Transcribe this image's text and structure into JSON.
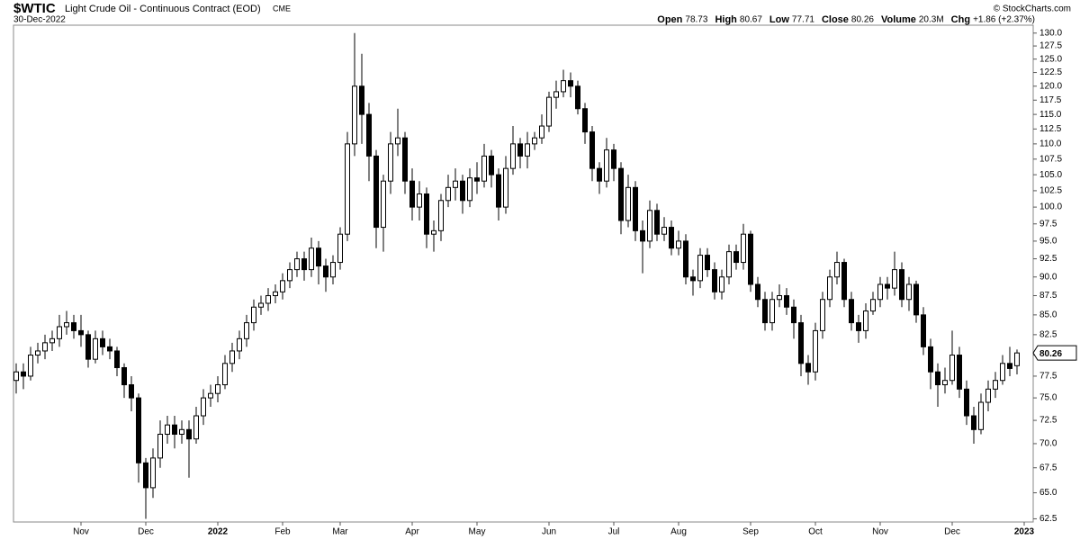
{
  "chart_data": {
    "type": "candlestick",
    "symbol": "$WTIC",
    "name": "Light Crude Oil - Continuous Contract (EOD)",
    "exchange": "CME",
    "date": "30-Dec-2022",
    "credit": "© StockCharts.com",
    "quote": [
      {
        "label": "Open",
        "value": 78.73
      },
      {
        "label": "High",
        "value": 80.67
      },
      {
        "label": "Low",
        "value": 77.71
      },
      {
        "label": "Close",
        "value": 80.26
      },
      {
        "label": "Volume",
        "value": "20.3M"
      },
      {
        "label": "Chg",
        "value": "+1.86 (+2.37%)"
      }
    ],
    "log_scale": true,
    "grid": false,
    "up_color": "#ffffff",
    "down_color": "#000000",
    "ylim": [
      62.2,
      131.2
    ],
    "yticks": [
      62.5,
      {
        "value": 65,
        "label": "65.0"
      },
      67.5,
      {
        "value": 70,
        "label": "70.0"
      },
      72.5,
      {
        "value": 75,
        "label": "75.0"
      },
      77.5,
      {
        "value": 80,
        "label": "80.0"
      },
      82.5,
      {
        "value": 85,
        "label": "85.0"
      },
      87.5,
      {
        "value": 90,
        "label": "90.0"
      },
      92.5,
      {
        "value": 95,
        "label": "95.0"
      },
      97.5,
      {
        "value": 100,
        "label": "100.0"
      },
      102.5,
      {
        "value": 105,
        "label": "105.0"
      },
      107.5,
      {
        "value": 110,
        "label": "110.0"
      },
      112.5,
      {
        "value": 115,
        "label": "115.0"
      },
      117.5,
      {
        "value": 120,
        "label": "120.0"
      },
      122.5,
      {
        "value": 125,
        "label": "125.0"
      },
      127.5,
      {
        "value": 130,
        "label": "130.0"
      }
    ],
    "xticks": [
      {
        "value": 9,
        "label": "Nov"
      },
      {
        "value": 18,
        "label": "Dec"
      },
      {
        "value": 28,
        "label": "2022"
      },
      {
        "value": 37,
        "label": "Feb"
      },
      {
        "value": 45,
        "label": "Mar"
      },
      {
        "value": 55,
        "label": "Apr"
      },
      {
        "value": 64,
        "label": "May"
      },
      {
        "value": 74,
        "label": "Jun"
      },
      {
        "value": 83,
        "label": "Jul"
      },
      {
        "value": 92,
        "label": "Aug"
      },
      {
        "value": 102,
        "label": "Sep"
      },
      {
        "value": 111,
        "label": "Oct"
      },
      {
        "value": 120,
        "label": "Nov"
      },
      {
        "value": 130,
        "label": "Dec"
      },
      {
        "value": 140,
        "label": "2023"
      }
    ],
    "open": [
      77,
      78,
      77.5,
      80,
      80.5,
      81.5,
      82,
      83.5,
      84,
      83,
      82.5,
      79.5,
      82,
      81,
      80.5,
      78.5,
      76.5,
      75,
      68,
      65.5,
      68.5,
      71,
      72,
      71,
      71.5,
      70.5,
      73,
      75,
      75.5,
      76.5,
      79,
      80.5,
      82,
      84,
      86,
      86.5,
      87.5,
      88,
      89.5,
      91,
      92.5,
      91,
      94,
      91.5,
      90,
      92,
      96,
      110,
      120,
      115,
      108,
      97,
      104,
      110,
      111,
      104,
      100,
      102,
      96,
      96.5,
      101,
      103,
      104,
      101,
      104.5,
      104,
      108,
      105,
      100,
      106,
      110,
      108,
      110,
      111,
      113,
      118,
      119,
      121,
      120,
      116,
      112,
      106,
      104,
      109,
      106,
      98,
      103,
      96.5,
      95,
      99.5,
      96,
      97,
      94,
      95,
      90,
      89.5,
      93,
      91,
      88,
      90,
      93.5,
      92,
      96,
      89,
      87,
      84,
      87,
      87.5,
      86,
      84,
      79,
      78,
      83,
      87,
      90,
      92,
      87,
      84,
      83,
      85.5,
      87,
      89,
      88.5,
      91,
      87,
      89,
      85,
      81,
      78,
      76.5,
      77,
      80,
      76,
      73,
      71.5,
      74.5,
      76,
      77,
      79,
      78.73
    ],
    "high": [
      79,
      79,
      81,
      81.5,
      82.5,
      83,
      85,
      85.5,
      85,
      85,
      83,
      83,
      83,
      82,
      81,
      79,
      77.5,
      75.5,
      68.5,
      69.5,
      72.5,
      73,
      73,
      72.5,
      72.5,
      74,
      76,
      76.5,
      77.5,
      80,
      81.5,
      83,
      85,
      87,
      87.5,
      88.5,
      89,
      90.5,
      92,
      93.5,
      93.5,
      95.5,
      95,
      92.5,
      93,
      97,
      112,
      130,
      126,
      117,
      109,
      105,
      112,
      116,
      112,
      106,
      104,
      103,
      98,
      102,
      105,
      106,
      105,
      106,
      107,
      110,
      109,
      106,
      108,
      113,
      111,
      112,
      112,
      115,
      119,
      121,
      123,
      122.5,
      121,
      117,
      113,
      107,
      111,
      110,
      107,
      105,
      104,
      98,
      101,
      100.5,
      98.5,
      98,
      96.5,
      96,
      91,
      94,
      94,
      92,
      91,
      94.5,
      94.5,
      97.5,
      96.5,
      90,
      88,
      88,
      89,
      88.5,
      87,
      85,
      80,
      84,
      88,
      91,
      93.5,
      92.5,
      88,
      85,
      86.5,
      88,
      90,
      90,
      93.5,
      92,
      90,
      89.5,
      86,
      82,
      79,
      78.5,
      83,
      81,
      77,
      74,
      75.5,
      77,
      78,
      80,
      81,
      80.67
    ],
    "low": [
      75.5,
      76,
      77,
      79,
      79.5,
      80.5,
      81,
      82.5,
      82,
      81,
      78.5,
      79,
      80,
      79.5,
      77.5,
      75,
      73.5,
      66,
      62.5,
      64.5,
      67.5,
      70,
      69.5,
      70,
      66.5,
      70,
      72,
      74,
      74.5,
      76,
      78,
      79.5,
      81,
      83,
      85,
      85.5,
      86.5,
      87,
      88.5,
      90,
      89.5,
      90,
      89,
      88,
      89,
      91,
      95,
      108,
      110,
      104,
      94,
      93.5,
      102,
      108,
      102,
      98,
      98,
      94,
      93.5,
      95,
      100,
      101,
      99,
      100,
      102,
      103,
      103,
      98,
      99,
      105,
      106,
      106,
      109,
      110,
      112,
      116,
      118,
      118,
      115,
      110,
      104,
      102,
      103,
      104,
      96,
      97,
      95,
      90.5,
      94,
      95,
      95,
      93,
      93,
      89,
      87.5,
      88.5,
      90,
      87,
      87,
      89,
      91,
      91,
      88,
      86,
      83,
      83,
      86,
      85,
      82,
      77.5,
      76.5,
      77,
      82,
      86,
      89,
      86,
      83,
      81.5,
      82,
      85,
      86,
      87,
      87.5,
      86,
      85.5,
      84,
      80,
      76,
      74,
      75.5,
      76.5,
      75,
      72,
      70,
      71,
      73.5,
      75,
      76.5,
      77.5,
      77.71
    ],
    "close": [
      78,
      77.5,
      80,
      80.5,
      81.5,
      82,
      83.5,
      84,
      83,
      82.5,
      79.5,
      82,
      81,
      80.5,
      78.5,
      76.5,
      75,
      68,
      65.5,
      68.5,
      71,
      72,
      71,
      71.5,
      70.5,
      73,
      75,
      75.5,
      76.5,
      79,
      80.5,
      82,
      84,
      86,
      86.5,
      87.5,
      88,
      89.5,
      91,
      92.5,
      91,
      94,
      91.5,
      90,
      92,
      96,
      110,
      120,
      115,
      108,
      97,
      104,
      110,
      111,
      104,
      100,
      102,
      96,
      96.5,
      101,
      103,
      104,
      101,
      104.5,
      104,
      108,
      105,
      100,
      106,
      110,
      108,
      110,
      111,
      113,
      118,
      119,
      121,
      120,
      116,
      112,
      106,
      104,
      109,
      106,
      98,
      103,
      96.5,
      95,
      99.5,
      96,
      97,
      94,
      95,
      90,
      89.5,
      93,
      91,
      88,
      90,
      93.5,
      92,
      96,
      89,
      87,
      84,
      87,
      87.5,
      86,
      84,
      79,
      78,
      83,
      87,
      90,
      92,
      87,
      84,
      83,
      85.5,
      87,
      89,
      88.5,
      91,
      87,
      89,
      85,
      81,
      78,
      76.5,
      77,
      80,
      76,
      73,
      71.5,
      74.5,
      76,
      77,
      79,
      78.4,
      80.26
    ]
  }
}
